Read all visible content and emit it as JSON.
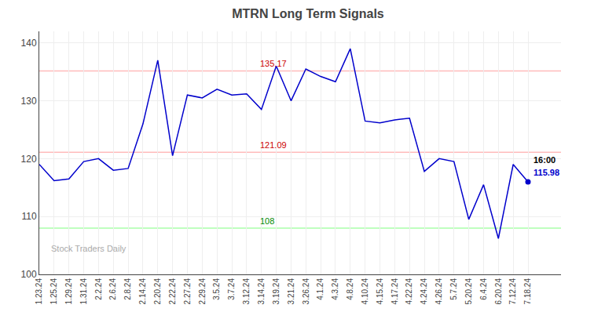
{
  "chart_data": {
    "type": "line",
    "title": "MTRN Long Term Signals",
    "categories": [
      "1.23.24",
      "1.25.24",
      "1.29.24",
      "1.31.24",
      "2.2.24",
      "2.6.24",
      "2.8.24",
      "2.14.24",
      "2.20.24",
      "2.22.24",
      "2.27.24",
      "2.29.24",
      "3.5.24",
      "3.7.24",
      "3.12.24",
      "3.14.24",
      "3.19.24",
      "3.21.24",
      "3.26.24",
      "4.1.24",
      "4.3.24",
      "4.8.24",
      "4.10.24",
      "4.15.24",
      "4.17.24",
      "4.22.24",
      "4.24.24",
      "4.26.24",
      "5.7.24",
      "5.20.24",
      "6.4.24",
      "6.20.24",
      "7.12.24",
      "7.18.24"
    ],
    "values": [
      119.0,
      116.2,
      116.5,
      119.5,
      120.0,
      118.0,
      118.3,
      126.0,
      137.0,
      120.5,
      131.0,
      130.5,
      132.0,
      131.0,
      131.2,
      128.5,
      136.0,
      130.0,
      135.5,
      134.2,
      133.3,
      139.0,
      126.5,
      126.2,
      126.7,
      127.0,
      117.8,
      120.0,
      119.5,
      109.5,
      115.5,
      106.2,
      119.0,
      115.98
    ],
    "color": "#0000cc",
    "ylim": [
      100,
      142
    ],
    "yticks": [
      100,
      110,
      120,
      130,
      140
    ],
    "grid": true,
    "reference_lines": [
      {
        "value": 135.17,
        "label": "135.17",
        "color": "#ffbbbb",
        "label_color": "#cc0000"
      },
      {
        "value": 121.09,
        "label": "121.09",
        "color": "#ffbbbb",
        "label_color": "#cc0000"
      },
      {
        "value": 108.0,
        "label": "108",
        "color": "#aaffaa",
        "label_color": "#008800"
      }
    ],
    "annotations": [
      {
        "text": "16:00",
        "color": "#000000"
      },
      {
        "text": "115.98",
        "value": 115.98,
        "color": "#0000cc"
      }
    ],
    "watermark": {
      "text": "Stock Traders Daily",
      "color": "#aaaaaa"
    }
  }
}
